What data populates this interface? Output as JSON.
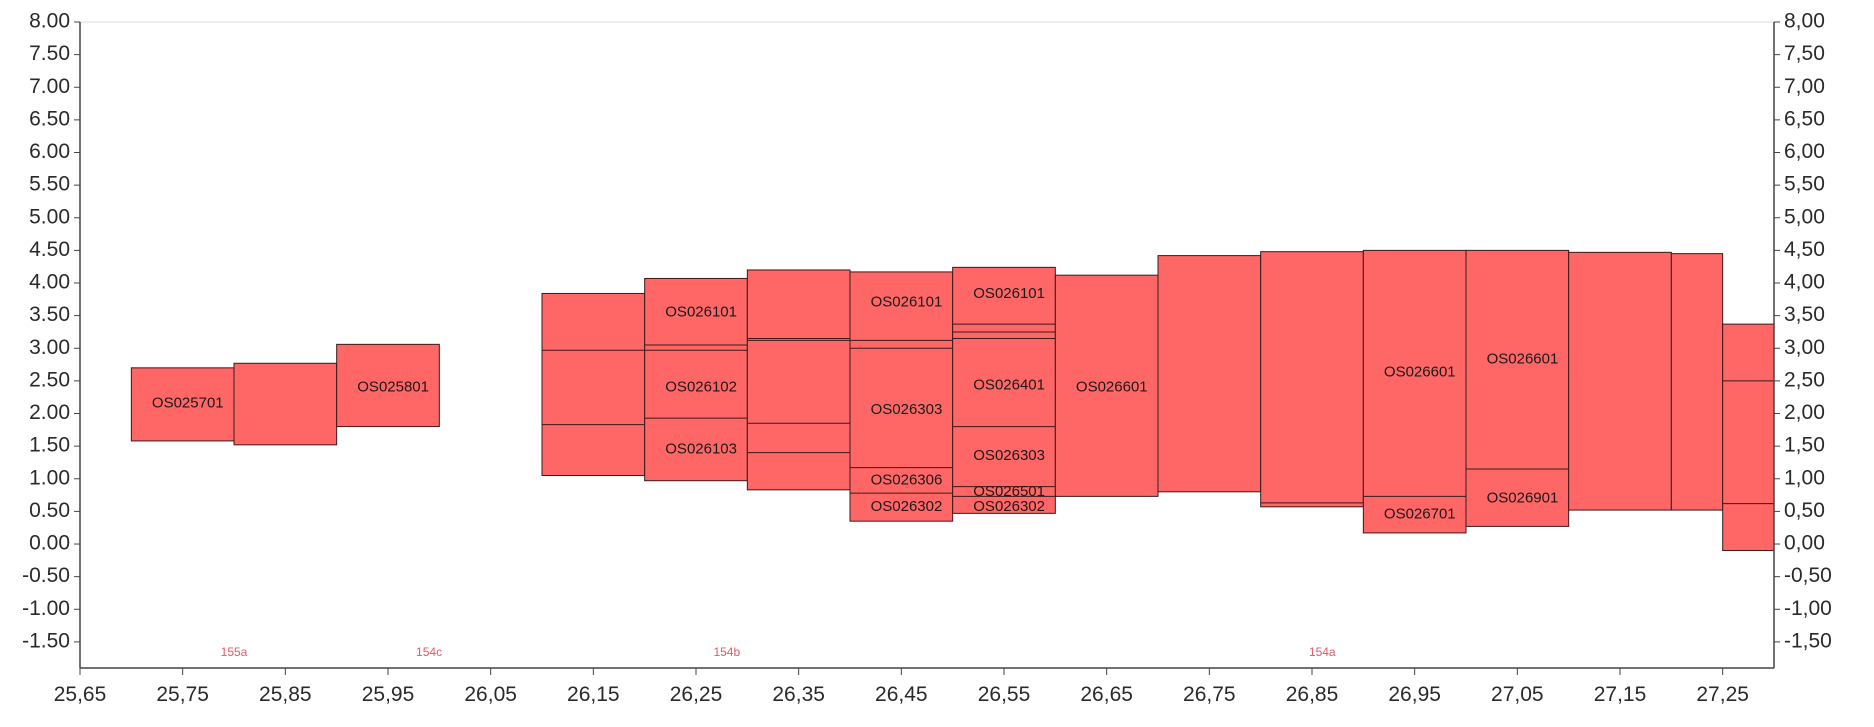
{
  "colors": {
    "fill": "#ff6666",
    "stroke": "#3a1a1a",
    "axis": "#444444",
    "zone_text": "#e05a6a"
  },
  "chart_data": {
    "type": "bar",
    "title": "",
    "xlabel": "",
    "ylabel": "",
    "xlim": [
      25.65,
      27.3
    ],
    "ylim": [
      -1.9,
      8.0
    ],
    "grid": false,
    "x_ticks": [
      "25,65",
      "25,75",
      "25,85",
      "25,95",
      "26,05",
      "26,15",
      "26,25",
      "26,35",
      "26,45",
      "26,55",
      "26,65",
      "26,75",
      "26,85",
      "26,95",
      "27,05",
      "27,15",
      "27,25"
    ],
    "x_tick_values": [
      25.65,
      25.75,
      25.85,
      25.95,
      26.05,
      26.15,
      26.25,
      26.35,
      26.45,
      26.55,
      26.65,
      26.75,
      26.85,
      26.95,
      27.05,
      27.15,
      27.25
    ],
    "y_ticks_left": [
      "8.00",
      "7.50",
      "7.00",
      "6.50",
      "6.00",
      "5.50",
      "5.00",
      "4.50",
      "4.00",
      "3.50",
      "3.00",
      "2.50",
      "2.00",
      "1.50",
      "1.00",
      "0.50",
      "0.00",
      "-0.50",
      "-1.00",
      "-1.50"
    ],
    "y_ticks_right": [
      "8,00",
      "7,50",
      "7,00",
      "6,50",
      "6,00",
      "5,50",
      "5,00",
      "4,50",
      "4,00",
      "3,50",
      "3,00",
      "2,50",
      "2,00",
      "1,50",
      "1,00",
      "0,50",
      "0,00",
      "-0,50",
      "-1,00",
      "-1,50"
    ],
    "y_tick_values": [
      8.0,
      7.5,
      7.0,
      6.5,
      6.0,
      5.5,
      5.0,
      4.5,
      4.0,
      3.5,
      3.0,
      2.5,
      2.0,
      1.5,
      1.0,
      0.5,
      0.0,
      -0.5,
      -1.0,
      -1.5
    ],
    "columns": [
      {
        "x0": 25.7,
        "x1": 25.8,
        "top": 2.7,
        "bottom": 1.58
      },
      {
        "x0": 25.8,
        "x1": 25.9,
        "top": 2.77,
        "bottom": 1.52
      },
      {
        "x0": 25.9,
        "x1": 26.0,
        "top": 3.06,
        "bottom": 1.8
      },
      {
        "x0": 26.1,
        "x1": 26.2,
        "top": 3.84,
        "bottom": 1.05
      },
      {
        "x0": 26.2,
        "x1": 26.3,
        "top": 4.07,
        "bottom": 0.97
      },
      {
        "x0": 26.3,
        "x1": 26.4,
        "top": 4.2,
        "bottom": 0.83
      },
      {
        "x0": 26.4,
        "x1": 26.5,
        "top": 4.17,
        "bottom": 0.35
      },
      {
        "x0": 26.5,
        "x1": 26.6,
        "top": 4.24,
        "bottom": 0.47
      },
      {
        "x0": 26.6,
        "x1": 26.7,
        "top": 4.12,
        "bottom": 0.73
      },
      {
        "x0": 26.7,
        "x1": 26.8,
        "top": 4.42,
        "bottom": 0.8
      },
      {
        "x0": 26.8,
        "x1": 26.9,
        "top": 4.48,
        "bottom": 0.57
      },
      {
        "x0": 26.9,
        "x1": 27.0,
        "top": 4.5,
        "bottom": 0.17
      },
      {
        "x0": 27.0,
        "x1": 27.1,
        "top": 4.5,
        "bottom": 0.27
      },
      {
        "x0": 27.1,
        "x1": 27.2,
        "top": 4.47,
        "bottom": 0.52
      },
      {
        "x0": 27.2,
        "x1": 27.25,
        "top": 4.45,
        "bottom": 0.52
      },
      {
        "x0": 27.25,
        "x1": 27.3,
        "top": 3.37,
        "bottom": -0.1
      }
    ],
    "layer_lines": [
      {
        "x0": 26.1,
        "x1": 26.2,
        "y": 2.97
      },
      {
        "x0": 26.1,
        "x1": 26.2,
        "y": 1.83
      },
      {
        "x0": 26.2,
        "x1": 26.3,
        "y": 3.05
      },
      {
        "x0": 26.2,
        "x1": 26.3,
        "y": 2.97
      },
      {
        "x0": 26.2,
        "x1": 26.3,
        "y": 1.93
      },
      {
        "x0": 26.3,
        "x1": 26.4,
        "y": 3.15
      },
      {
        "x0": 26.3,
        "x1": 26.4,
        "y": 3.12
      },
      {
        "x0": 26.3,
        "x1": 26.4,
        "y": 1.85
      },
      {
        "x0": 26.3,
        "x1": 26.4,
        "y": 1.4
      },
      {
        "x0": 26.4,
        "x1": 26.5,
        "y": 3.12
      },
      {
        "x0": 26.4,
        "x1": 26.5,
        "y": 3.0
      },
      {
        "x0": 26.4,
        "x1": 26.5,
        "y": 1.17
      },
      {
        "x0": 26.4,
        "x1": 26.5,
        "y": 0.78
      },
      {
        "x0": 26.5,
        "x1": 26.6,
        "y": 3.37
      },
      {
        "x0": 26.5,
        "x1": 26.6,
        "y": 3.25
      },
      {
        "x0": 26.5,
        "x1": 26.6,
        "y": 3.15
      },
      {
        "x0": 26.5,
        "x1": 26.6,
        "y": 1.8
      },
      {
        "x0": 26.5,
        "x1": 26.6,
        "y": 0.88
      },
      {
        "x0": 26.5,
        "x1": 26.6,
        "y": 0.73
      },
      {
        "x0": 26.8,
        "x1": 26.9,
        "y": 0.63
      },
      {
        "x0": 26.9,
        "x1": 27.0,
        "y": 0.73
      },
      {
        "x0": 27.0,
        "x1": 27.1,
        "y": 1.15
      },
      {
        "x0": 27.25,
        "x1": 27.3,
        "y": 2.5
      },
      {
        "x0": 27.25,
        "x1": 27.3,
        "y": 0.62
      }
    ],
    "annotations": [
      {
        "text": "OS025701",
        "x": 25.755,
        "y": 2.15
      },
      {
        "text": "OS025801",
        "x": 25.955,
        "y": 2.4
      },
      {
        "text": "OS026101",
        "x": 26.255,
        "y": 3.55
      },
      {
        "text": "OS026102",
        "x": 26.255,
        "y": 2.4
      },
      {
        "text": "OS026103",
        "x": 26.255,
        "y": 1.45
      },
      {
        "text": "OS026101",
        "x": 26.455,
        "y": 3.7
      },
      {
        "text": "OS026303",
        "x": 26.455,
        "y": 2.05
      },
      {
        "text": "OS026306",
        "x": 26.455,
        "y": 0.97
      },
      {
        "text": "OS026302",
        "x": 26.455,
        "y": 0.57
      },
      {
        "text": "OS026101",
        "x": 26.555,
        "y": 3.83
      },
      {
        "text": "OS026401",
        "x": 26.555,
        "y": 2.43
      },
      {
        "text": "OS026303",
        "x": 26.555,
        "y": 1.35
      },
      {
        "text": "OS026501",
        "x": 26.555,
        "y": 0.8
      },
      {
        "text": "OS026302",
        "x": 26.555,
        "y": 0.57
      },
      {
        "text": "OS026601",
        "x": 26.655,
        "y": 2.4
      },
      {
        "text": "OS026601",
        "x": 26.955,
        "y": 2.63
      },
      {
        "text": "OS026601",
        "x": 27.055,
        "y": 2.83
      },
      {
        "text": "OS026701",
        "x": 26.955,
        "y": 0.45
      },
      {
        "text": "OS026901",
        "x": 27.055,
        "y": 0.7
      }
    ],
    "zone_labels": [
      {
        "text": "155a",
        "x": 25.8
      },
      {
        "text": "154c",
        "x": 25.99
      },
      {
        "text": "154b",
        "x": 26.28
      },
      {
        "text": "154a",
        "x": 26.86
      }
    ]
  }
}
